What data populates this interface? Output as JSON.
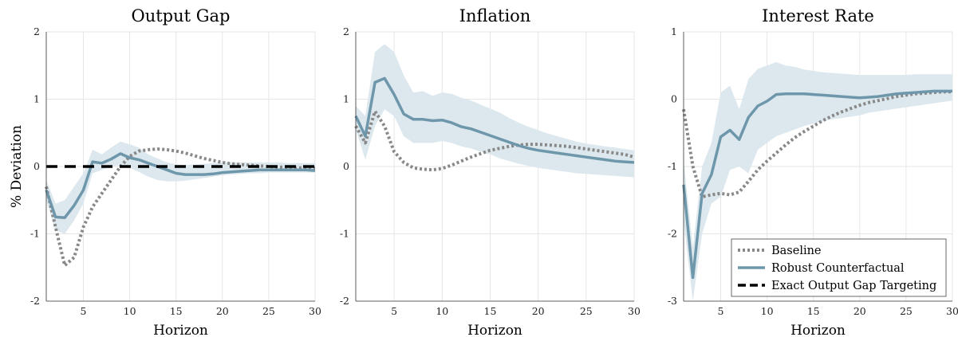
{
  "chart_data": [
    {
      "type": "line",
      "title": "Output Gap",
      "xlabel": "Horizon",
      "ylabel": "% Deviation",
      "xlim": [
        1,
        30
      ],
      "ylim": [
        -2,
        2
      ],
      "xticks": [
        5,
        10,
        15,
        20,
        25,
        30
      ],
      "yticks": [
        -2,
        -1,
        0,
        1,
        2
      ],
      "grid": true,
      "x": [
        1,
        2,
        3,
        4,
        5,
        6,
        7,
        8,
        9,
        10,
        11,
        12,
        13,
        14,
        15,
        16,
        17,
        18,
        19,
        20,
        21,
        22,
        23,
        24,
        25,
        26,
        27,
        28,
        29,
        30
      ],
      "band": {
        "lower": [
          -0.5,
          -0.95,
          -1.0,
          -0.8,
          -0.55,
          -0.1,
          -0.05,
          0.0,
          0.02,
          -0.02,
          -0.08,
          -0.15,
          -0.2,
          -0.22,
          -0.22,
          -0.21,
          -0.19,
          -0.17,
          -0.15,
          -0.13,
          -0.12,
          -0.11,
          -0.1,
          -0.1,
          -0.09,
          -0.09,
          -0.09,
          -0.09,
          -0.09,
          -0.09
        ],
        "upper": [
          -0.2,
          -0.55,
          -0.5,
          -0.3,
          -0.1,
          0.25,
          0.18,
          0.28,
          0.37,
          0.33,
          0.28,
          0.18,
          0.12,
          0.06,
          0.03,
          0.02,
          0.03,
          0.04,
          0.05,
          0.06,
          0.06,
          0.06,
          0.06,
          0.06,
          0.06,
          0.06,
          0.05,
          0.05,
          0.05,
          0.05
        ]
      },
      "series": [
        {
          "name": "Baseline",
          "style": "dotted",
          "color": "#888888",
          "values": [
            -0.3,
            -0.9,
            -1.47,
            -1.35,
            -0.9,
            -0.6,
            -0.4,
            -0.2,
            0.0,
            0.15,
            0.23,
            0.25,
            0.26,
            0.25,
            0.23,
            0.2,
            0.16,
            0.12,
            0.09,
            0.06,
            0.04,
            0.03,
            0.02,
            0.01,
            0.0,
            -0.01,
            -0.01,
            -0.02,
            -0.02,
            -0.02
          ]
        },
        {
          "name": "Robust Counterfactual",
          "style": "solid",
          "color": "#6f97ab",
          "values": [
            -0.35,
            -0.75,
            -0.76,
            -0.58,
            -0.35,
            0.07,
            0.05,
            0.11,
            0.19,
            0.13,
            0.1,
            0.05,
            0.0,
            -0.05,
            -0.1,
            -0.12,
            -0.12,
            -0.12,
            -0.11,
            -0.09,
            -0.08,
            -0.07,
            -0.06,
            -0.05,
            -0.05,
            -0.05,
            -0.05,
            -0.05,
            -0.05,
            -0.06
          ]
        },
        {
          "name": "Exact Output Gap Targeting",
          "style": "dashed",
          "color": "#000000",
          "values": [
            0,
            0,
            0,
            0,
            0,
            0,
            0,
            0,
            0,
            0,
            0,
            0,
            0,
            0,
            0,
            0,
            0,
            0,
            0,
            0,
            0,
            0,
            0,
            0,
            0,
            0,
            0,
            0,
            0,
            0
          ]
        }
      ]
    },
    {
      "type": "line",
      "title": "Inflation",
      "xlabel": "Horizon",
      "ylabel": "",
      "xlim": [
        1,
        30
      ],
      "ylim": [
        -2,
        2
      ],
      "xticks": [
        5,
        10,
        15,
        20,
        25,
        30
      ],
      "yticks": [
        -2,
        -1,
        0,
        1,
        2
      ],
      "grid": true,
      "x": [
        1,
        2,
        3,
        4,
        5,
        6,
        7,
        8,
        9,
        10,
        11,
        12,
        13,
        14,
        15,
        16,
        17,
        18,
        19,
        20,
        21,
        22,
        23,
        24,
        25,
        26,
        27,
        28,
        29,
        30
      ],
      "band": {
        "lower": [
          0.55,
          0.1,
          0.6,
          0.85,
          0.75,
          0.45,
          0.35,
          0.35,
          0.35,
          0.38,
          0.35,
          0.3,
          0.27,
          0.22,
          0.18,
          0.12,
          0.08,
          0.04,
          0.01,
          -0.02,
          -0.04,
          -0.06,
          -0.08,
          -0.1,
          -0.11,
          -0.12,
          -0.13,
          -0.14,
          -0.15,
          -0.16
        ],
        "upper": [
          0.9,
          0.75,
          1.7,
          1.82,
          1.7,
          1.35,
          1.1,
          1.12,
          1.05,
          1.1,
          1.08,
          1.02,
          0.98,
          0.92,
          0.86,
          0.8,
          0.72,
          0.65,
          0.59,
          0.54,
          0.49,
          0.45,
          0.41,
          0.37,
          0.34,
          0.32,
          0.3,
          0.28,
          0.26,
          0.24
        ]
      },
      "series": [
        {
          "name": "Baseline",
          "style": "dotted",
          "color": "#888888",
          "values": [
            0.6,
            0.35,
            0.82,
            0.6,
            0.22,
            0.06,
            -0.02,
            -0.04,
            -0.05,
            -0.03,
            0.02,
            0.08,
            0.14,
            0.19,
            0.24,
            0.27,
            0.3,
            0.32,
            0.33,
            0.33,
            0.32,
            0.31,
            0.3,
            0.28,
            0.26,
            0.24,
            0.22,
            0.2,
            0.18,
            0.14
          ]
        },
        {
          "name": "Robust Counterfactual",
          "style": "solid",
          "color": "#6f97ab",
          "values": [
            0.75,
            0.45,
            1.25,
            1.31,
            1.07,
            0.78,
            0.7,
            0.7,
            0.68,
            0.69,
            0.65,
            0.59,
            0.56,
            0.51,
            0.46,
            0.41,
            0.36,
            0.31,
            0.27,
            0.24,
            0.22,
            0.2,
            0.18,
            0.16,
            0.14,
            0.12,
            0.1,
            0.08,
            0.07,
            0.06
          ]
        }
      ]
    },
    {
      "type": "line",
      "title": "Interest Rate",
      "xlabel": "Horizon",
      "ylabel": "",
      "xlim": [
        1,
        30
      ],
      "ylim": [
        -3,
        1
      ],
      "xticks": [
        5,
        10,
        15,
        20,
        25,
        30
      ],
      "yticks": [
        -3,
        -2,
        -1,
        0,
        1
      ],
      "grid": true,
      "x": [
        1,
        2,
        3,
        4,
        5,
        6,
        7,
        8,
        9,
        10,
        11,
        12,
        13,
        14,
        15,
        16,
        17,
        18,
        19,
        20,
        21,
        22,
        23,
        24,
        25,
        26,
        27,
        28,
        29,
        30
      ],
      "band": {
        "lower": [
          -1.8,
          -3.0,
          -2.0,
          -1.55,
          -1.45,
          -1.05,
          -1.0,
          -1.1,
          -0.75,
          -0.65,
          -0.55,
          -0.5,
          -0.45,
          -0.4,
          -0.36,
          -0.33,
          -0.3,
          -0.28,
          -0.26,
          -0.24,
          -0.2,
          -0.18,
          -0.16,
          -0.14,
          -0.12,
          -0.1,
          -0.08,
          -0.06,
          -0.04,
          -0.02
        ],
        "upper": [
          -0.9,
          -2.2,
          -1.0,
          -0.65,
          0.1,
          0.2,
          -0.15,
          0.3,
          0.45,
          0.5,
          0.55,
          0.5,
          0.48,
          0.44,
          0.42,
          0.4,
          0.39,
          0.38,
          0.37,
          0.36,
          0.36,
          0.36,
          0.36,
          0.36,
          0.36,
          0.37,
          0.37,
          0.37,
          0.37,
          0.37
        ]
      },
      "series": [
        {
          "name": "Baseline",
          "style": "dotted",
          "color": "#888888",
          "values": [
            -0.15,
            -1.0,
            -1.45,
            -1.42,
            -1.4,
            -1.42,
            -1.38,
            -1.22,
            -1.05,
            -0.92,
            -0.8,
            -0.68,
            -0.57,
            -0.48,
            -0.4,
            -0.32,
            -0.25,
            -0.19,
            -0.14,
            -0.09,
            -0.05,
            -0.02,
            0.01,
            0.04,
            0.06,
            0.08,
            0.09,
            0.1,
            0.11,
            0.11
          ]
        },
        {
          "name": "Robust Counterfactual",
          "style": "solid",
          "color": "#6f97ab",
          "values": [
            -1.27,
            -2.65,
            -1.4,
            -1.12,
            -0.56,
            -0.46,
            -0.6,
            -0.27,
            -0.1,
            -0.03,
            0.07,
            0.08,
            0.08,
            0.08,
            0.07,
            0.06,
            0.05,
            0.04,
            0.03,
            0.02,
            0.03,
            0.04,
            0.06,
            0.08,
            0.09,
            0.1,
            0.11,
            0.12,
            0.12,
            0.12
          ]
        }
      ]
    }
  ],
  "legend": {
    "placement": "bottom-right of third panel",
    "entries": [
      {
        "label": "Baseline",
        "style": "dotted",
        "color": "#888888"
      },
      {
        "label": "Robust Counterfactual",
        "style": "solid",
        "color": "#6f97ab"
      },
      {
        "label": "Exact Output Gap Targeting",
        "style": "dashed",
        "color": "#000000"
      }
    ]
  },
  "colors": {
    "band": "#dce8ee",
    "grid": "#e6e6e6"
  }
}
